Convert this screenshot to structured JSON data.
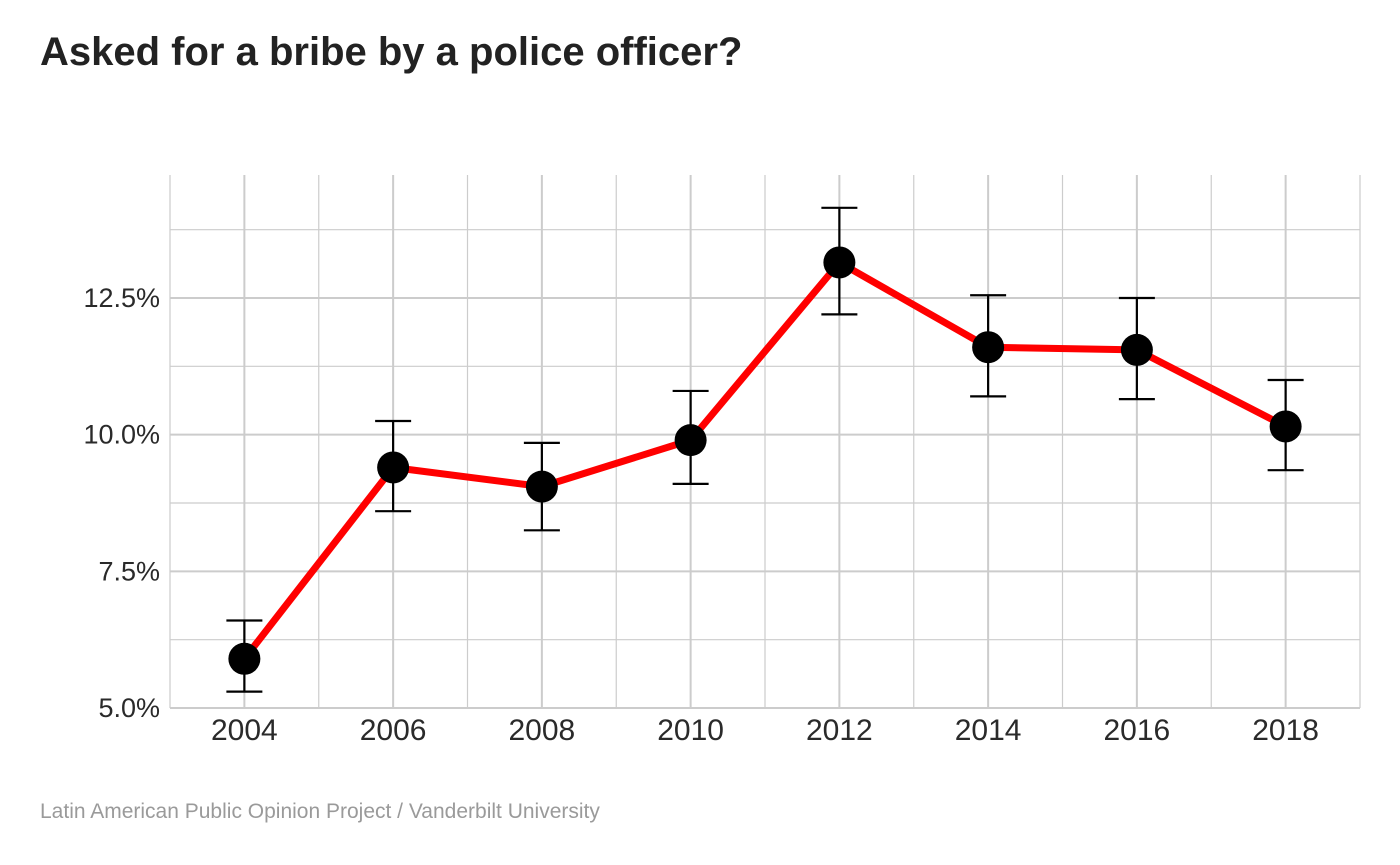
{
  "title": "Asked for a bribe by a police officer?",
  "source": "Latin American Public Opinion Project / Vanderbilt University",
  "chart_data": {
    "type": "line",
    "x": [
      2004,
      2006,
      2008,
      2010,
      2012,
      2014,
      2016,
      2018
    ],
    "series": [
      {
        "values": [
          5.9,
          9.4,
          9.05,
          9.9,
          13.15,
          11.6,
          11.55,
          10.15
        ],
        "ci_low": [
          5.3,
          8.6,
          8.25,
          9.1,
          12.2,
          10.7,
          10.65,
          9.35
        ],
        "ci_high": [
          6.6,
          10.25,
          9.85,
          10.8,
          14.15,
          12.55,
          12.5,
          11.0
        ]
      }
    ],
    "x_ticks": [
      "2004",
      "2006",
      "2008",
      "2010",
      "2012",
      "2014",
      "2016",
      "2018"
    ],
    "y_ticks": [
      5.0,
      7.5,
      10.0,
      12.5
    ],
    "y_tick_labels": [
      "5.0%",
      "7.5%",
      "10.0%",
      "12.5%"
    ],
    "ylim": [
      5.0,
      14.75
    ],
    "xlim": [
      2003.0,
      2019.0
    ],
    "grid": true,
    "line_color": "#ff0000",
    "marker_color": "#000000",
    "grid_color": "#cccccc"
  }
}
